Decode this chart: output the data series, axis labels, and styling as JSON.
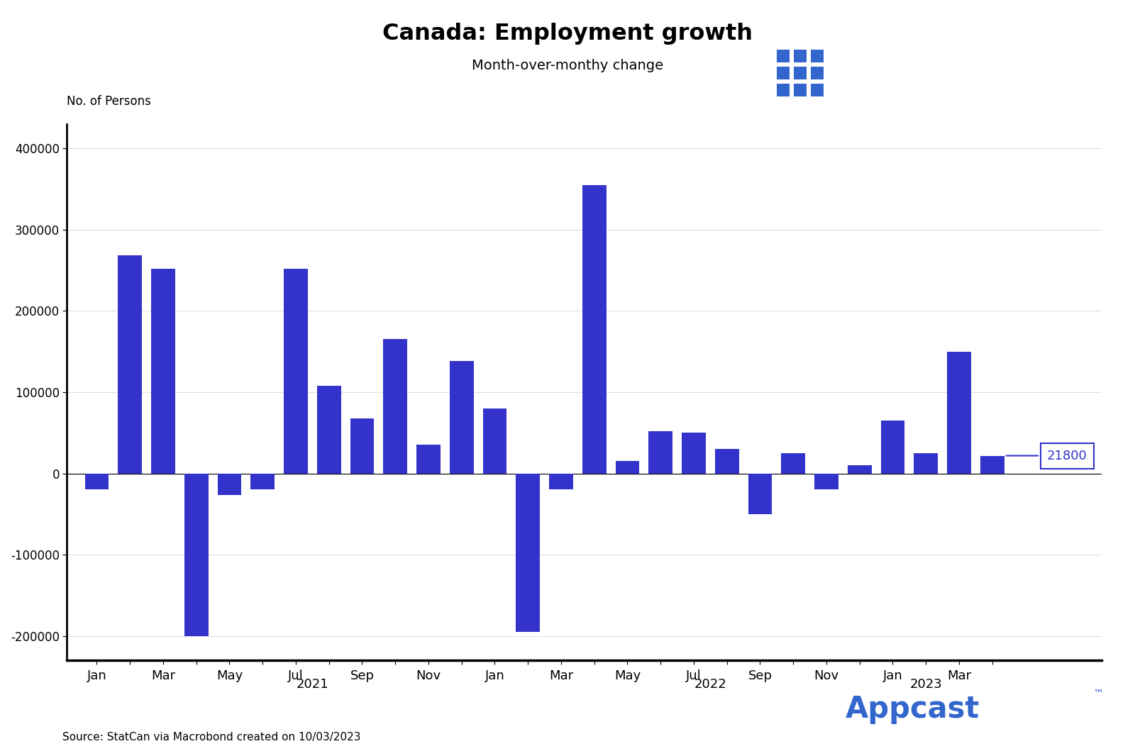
{
  "title": "Canada: Employment growth",
  "subtitle": "Month-over-monthy change",
  "ylabel": "No. of Persons",
  "source": "Source: StatCan via Macrobond created on 10/03/2023",
  "bar_color": "#3333CC",
  "appcast_color": "#3366CC",
  "background_color": "#FFFFFF",
  "annotation_value": "21800",
  "ylim": [
    -230000,
    430000
  ],
  "yticks": [
    -200000,
    -100000,
    0,
    100000,
    200000,
    300000,
    400000
  ],
  "values": [
    -20000,
    268000,
    252000,
    -200000,
    -27000,
    -20000,
    252000,
    108000,
    68000,
    165000,
    35000,
    138000,
    80000,
    -195000,
    -20000,
    355000,
    15000,
    52000,
    50000,
    30000,
    -50000,
    25000,
    -20000,
    10000,
    65000,
    25000,
    150000,
    21800
  ],
  "xtick_texts": {
    "0": "Jan",
    "2": "Mar",
    "4": "May",
    "6": "Jul",
    "8": "Sep",
    "10": "Nov",
    "12": "Jan",
    "14": "Mar",
    "16": "May",
    "18": "Jul",
    "20": "Sep",
    "22": "Nov",
    "24": "Jan",
    "26": "Mar"
  },
  "year_labels": [
    {
      "text": "2021",
      "idx": 6.5
    },
    {
      "text": "2022",
      "idx": 18.5
    },
    {
      "text": "2023",
      "idx": 25.0
    }
  ]
}
